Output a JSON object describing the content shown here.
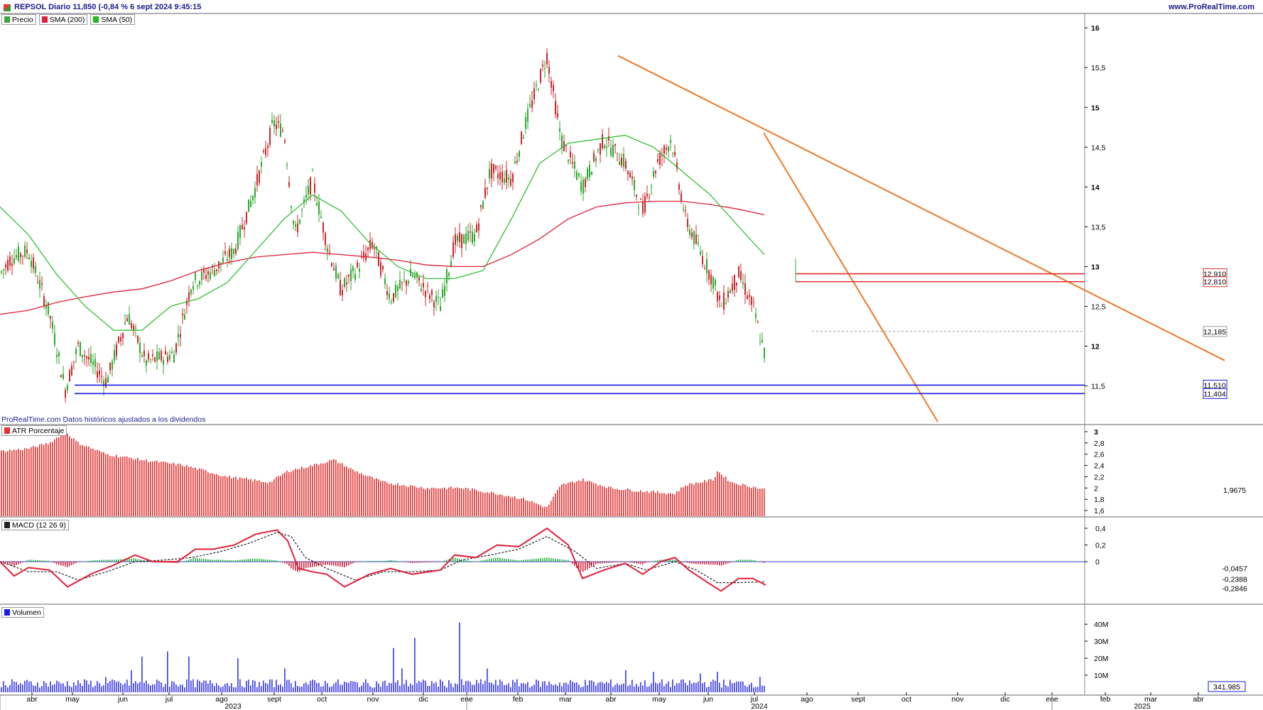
{
  "header": {
    "title": "REPSOL Diario 11,850 (-0,84 % 6 sept 2024 9:45:15",
    "site": "www.ProRealTime.com"
  },
  "legend_price": [
    {
      "label": "Precio",
      "color": "#38a838"
    },
    {
      "label": "SMA (200)",
      "color": "#e0203a"
    },
    {
      "label": "SMA (50)",
      "color": "#22bb22"
    }
  ],
  "footnote": "ProRealTime.com Datos históricos ajustados a los dividendos",
  "legend_atr": {
    "label": "ATR Porcentaje",
    "color": "#e03030"
  },
  "legend_macd": {
    "label": "MACD (12 26 9)",
    "color": "#222222"
  },
  "legend_vol": {
    "label": "Volumen",
    "color": "#1a1ae0"
  },
  "chart_data": [
    {
      "type": "candlestick",
      "title": "REPSOL Diario",
      "y_ticks": [
        "16",
        "15,5",
        "15",
        "14,5",
        "14",
        "13,5",
        "13",
        "12,5",
        "12",
        "11,5"
      ],
      "ylim": [
        11.05,
        16.1
      ],
      "last_price": 11.85,
      "change_pct": -0.84,
      "price_path": [
        [
          0,
          12.9
        ],
        [
          15,
          13.1
        ],
        [
          40,
          13.2
        ],
        [
          70,
          12.4
        ],
        [
          92,
          11.45
        ],
        [
          110,
          12.0
        ],
        [
          150,
          11.55
        ],
        [
          180,
          12.4
        ],
        [
          205,
          11.8
        ],
        [
          245,
          11.9
        ],
        [
          270,
          12.8
        ],
        [
          300,
          12.95
        ],
        [
          330,
          13.2
        ],
        [
          360,
          14.0
        ],
        [
          385,
          14.8
        ],
        [
          400,
          14.7
        ],
        [
          415,
          13.4
        ],
        [
          440,
          14.1
        ],
        [
          460,
          13.3
        ],
        [
          480,
          12.7
        ],
        [
          505,
          13.0
        ],
        [
          525,
          13.3
        ],
        [
          550,
          12.6
        ],
        [
          580,
          12.9
        ],
        [
          620,
          12.5
        ],
        [
          640,
          13.3
        ],
        [
          670,
          13.4
        ],
        [
          690,
          14.2
        ],
        [
          720,
          14.1
        ],
        [
          740,
          14.8
        ],
        [
          770,
          15.65
        ],
        [
          790,
          14.6
        ],
        [
          820,
          14.0
        ],
        [
          850,
          14.6
        ],
        [
          880,
          14.3
        ],
        [
          905,
          13.7
        ],
        [
          925,
          14.3
        ],
        [
          945,
          14.6
        ],
        [
          965,
          13.6
        ],
        [
          985,
          13.2
        ],
        [
          1005,
          12.8
        ],
        [
          1015,
          12.5
        ],
        [
          1040,
          12.9
        ],
        [
          1060,
          12.5
        ],
        [
          1072,
          12.05
        ],
        [
          1078,
          11.85
        ]
      ],
      "sma50": [
        [
          0,
          13.75
        ],
        [
          40,
          13.4
        ],
        [
          80,
          12.9
        ],
        [
          120,
          12.5
        ],
        [
          160,
          12.2
        ],
        [
          200,
          12.2
        ],
        [
          240,
          12.5
        ],
        [
          280,
          12.6
        ],
        [
          320,
          12.8
        ],
        [
          360,
          13.2
        ],
        [
          400,
          13.6
        ],
        [
          440,
          13.9
        ],
        [
          480,
          13.7
        ],
        [
          520,
          13.3
        ],
        [
          560,
          13.0
        ],
        [
          600,
          12.85
        ],
        [
          640,
          12.85
        ],
        [
          680,
          12.95
        ],
        [
          720,
          13.6
        ],
        [
          760,
          14.3
        ],
        [
          800,
          14.55
        ],
        [
          840,
          14.6
        ],
        [
          880,
          14.65
        ],
        [
          920,
          14.5
        ],
        [
          960,
          14.2
        ],
        [
          1000,
          13.9
        ],
        [
          1040,
          13.5
        ],
        [
          1076,
          13.15
        ]
      ],
      "sma200": [
        [
          0,
          12.4
        ],
        [
          40,
          12.45
        ],
        [
          80,
          12.55
        ],
        [
          120,
          12.62
        ],
        [
          160,
          12.68
        ],
        [
          200,
          12.72
        ],
        [
          240,
          12.82
        ],
        [
          280,
          12.95
        ],
        [
          320,
          13.05
        ],
        [
          360,
          13.12
        ],
        [
          400,
          13.15
        ],
        [
          440,
          13.18
        ],
        [
          480,
          13.15
        ],
        [
          520,
          13.12
        ],
        [
          560,
          13.08
        ],
        [
          600,
          13.02
        ],
        [
          640,
          13.0
        ],
        [
          680,
          13.0
        ],
        [
          720,
          13.15
        ],
        [
          760,
          13.35
        ],
        [
          800,
          13.6
        ],
        [
          840,
          13.75
        ],
        [
          880,
          13.8
        ],
        [
          920,
          13.82
        ],
        [
          960,
          13.82
        ],
        [
          1000,
          13.78
        ],
        [
          1040,
          13.72
        ],
        [
          1076,
          13.65
        ]
      ],
      "trendlines": [
        {
          "from": [
            "abr 2024",
            15.65
          ],
          "to": [
            "abr 2025",
            11.82
          ]
        },
        {
          "from": [
            "jul 2024",
            14.68
          ],
          "to": [
            "oct 2024",
            11.05
          ]
        }
      ],
      "levels": [
        {
          "value": 12.91,
          "label": "12,910",
          "color": "#e03030"
        },
        {
          "value": 12.81,
          "label": "12,810",
          "color": "#e03030"
        },
        {
          "value": 12.185,
          "label": "12,185",
          "color": "#999999",
          "dashed": true
        },
        {
          "value": 11.51,
          "label": "11,510",
          "color": "#1a1ae0"
        },
        {
          "value": 11.404,
          "label": "11,404",
          "color": "#1a1ae0"
        }
      ]
    },
    {
      "type": "bar",
      "title": "ATR Porcentaje",
      "y_ticks": [
        "3",
        "2,8",
        "2,6",
        "2,4",
        "2,2",
        "2",
        "1,8",
        "1,6"
      ],
      "ylim": [
        1.5,
        3.05
      ],
      "last_value_label": "1,9675",
      "path": [
        [
          0,
          2.65
        ],
        [
          40,
          2.7
        ],
        [
          70,
          2.8
        ],
        [
          92,
          3.0
        ],
        [
          110,
          2.8
        ],
        [
          150,
          2.6
        ],
        [
          200,
          2.5
        ],
        [
          260,
          2.4
        ],
        [
          320,
          2.2
        ],
        [
          380,
          2.1
        ],
        [
          405,
          2.3
        ],
        [
          440,
          2.4
        ],
        [
          470,
          2.5
        ],
        [
          500,
          2.3
        ],
        [
          540,
          2.1
        ],
        [
          600,
          2.0
        ],
        [
          650,
          2.0
        ],
        [
          700,
          1.9
        ],
        [
          740,
          1.8
        ],
        [
          770,
          1.65
        ],
        [
          790,
          2.05
        ],
        [
          820,
          2.15
        ],
        [
          860,
          2.0
        ],
        [
          900,
          1.95
        ],
        [
          950,
          1.9
        ],
        [
          965,
          2.05
        ],
        [
          1005,
          2.15
        ],
        [
          1010,
          2.3
        ],
        [
          1030,
          2.1
        ],
        [
          1078,
          1.97
        ]
      ]
    },
    {
      "type": "line",
      "title": "MACD (12 26 9)",
      "y_ticks": [
        "0,4",
        "0,2",
        "0"
      ],
      "ylim": [
        -0.5,
        0.46
      ],
      "last_value_labels": [
        "-0,0457",
        "-0,2388",
        "-0,2846"
      ],
      "macd": [
        [
          0,
          0.0
        ],
        [
          20,
          -0.17
        ],
        [
          40,
          -0.07
        ],
        [
          70,
          -0.1
        ],
        [
          95,
          -0.3
        ],
        [
          130,
          -0.14
        ],
        [
          160,
          -0.04
        ],
        [
          190,
          0.08
        ],
        [
          215,
          0.0
        ],
        [
          250,
          0.0
        ],
        [
          275,
          0.15
        ],
        [
          300,
          0.15
        ],
        [
          330,
          0.2
        ],
        [
          360,
          0.33
        ],
        [
          390,
          0.38
        ],
        [
          405,
          0.25
        ],
        [
          420,
          -0.08
        ],
        [
          440,
          -0.12
        ],
        [
          460,
          -0.15
        ],
        [
          485,
          -0.3
        ],
        [
          520,
          -0.15
        ],
        [
          550,
          -0.08
        ],
        [
          580,
          -0.15
        ],
        [
          620,
          -0.1
        ],
        [
          640,
          0.08
        ],
        [
          670,
          0.05
        ],
        [
          700,
          0.2
        ],
        [
          730,
          0.18
        ],
        [
          770,
          0.4
        ],
        [
          800,
          0.2
        ],
        [
          820,
          -0.2
        ],
        [
          850,
          -0.1
        ],
        [
          880,
          -0.02
        ],
        [
          905,
          -0.15
        ],
        [
          930,
          0.0
        ],
        [
          950,
          0.05
        ],
        [
          970,
          -0.1
        ],
        [
          1000,
          -0.27
        ],
        [
          1015,
          -0.35
        ],
        [
          1040,
          -0.2
        ],
        [
          1060,
          -0.2
        ],
        [
          1078,
          -0.28
        ]
      ],
      "signal": [
        [
          0,
          0.0
        ],
        [
          40,
          -0.12
        ],
        [
          80,
          -0.12
        ],
        [
          110,
          -0.22
        ],
        [
          150,
          -0.12
        ],
        [
          190,
          0.0
        ],
        [
          230,
          0.02
        ],
        [
          270,
          0.05
        ],
        [
          310,
          0.12
        ],
        [
          350,
          0.22
        ],
        [
          390,
          0.35
        ],
        [
          410,
          0.3
        ],
        [
          430,
          0.05
        ],
        [
          460,
          -0.08
        ],
        [
          500,
          -0.22
        ],
        [
          540,
          -0.12
        ],
        [
          580,
          -0.12
        ],
        [
          620,
          -0.1
        ],
        [
          650,
          0.02
        ],
        [
          690,
          0.08
        ],
        [
          730,
          0.15
        ],
        [
          770,
          0.3
        ],
        [
          810,
          0.12
        ],
        [
          840,
          -0.08
        ],
        [
          880,
          -0.02
        ],
        [
          910,
          -0.1
        ],
        [
          950,
          0.0
        ],
        [
          980,
          -0.1
        ],
        [
          1010,
          -0.25
        ],
        [
          1040,
          -0.25
        ],
        [
          1078,
          -0.24
        ]
      ]
    },
    {
      "type": "bar",
      "title": "Volumen",
      "y_ticks": [
        "40M",
        "30M",
        "20M",
        "10M"
      ],
      "ylim": [
        0,
        48000000
      ],
      "last_value_label": "341.985",
      "baseline": 5500000,
      "spikes": [
        [
          150,
          9000000
        ],
        [
          185,
          13000000
        ],
        [
          200,
          21000000
        ],
        [
          235,
          24000000
        ],
        [
          265,
          21000000
        ],
        [
          335,
          20000000
        ],
        [
          400,
          14000000
        ],
        [
          555,
          26000000
        ],
        [
          565,
          14000000
        ],
        [
          585,
          32000000
        ],
        [
          648,
          41000000
        ],
        [
          685,
          14000000
        ],
        [
          880,
          13000000
        ],
        [
          920,
          12000000
        ],
        [
          985,
          11000000
        ],
        [
          1010,
          12000000
        ],
        [
          1070,
          9000000
        ]
      ]
    },
    {
      "type": "x-axis",
      "months": [
        "abr",
        "may",
        "jun",
        "jul",
        "ago",
        "sept",
        "oct",
        "nov",
        "dic",
        "ene",
        "feb",
        "mar",
        "abr",
        "may",
        "jun",
        "jul",
        "ago",
        "sept",
        "oct",
        "nov",
        "dic",
        "ene",
        "feb",
        "mar",
        "abr"
      ],
      "years": [
        "2023",
        "2024",
        "2025"
      ]
    }
  ]
}
